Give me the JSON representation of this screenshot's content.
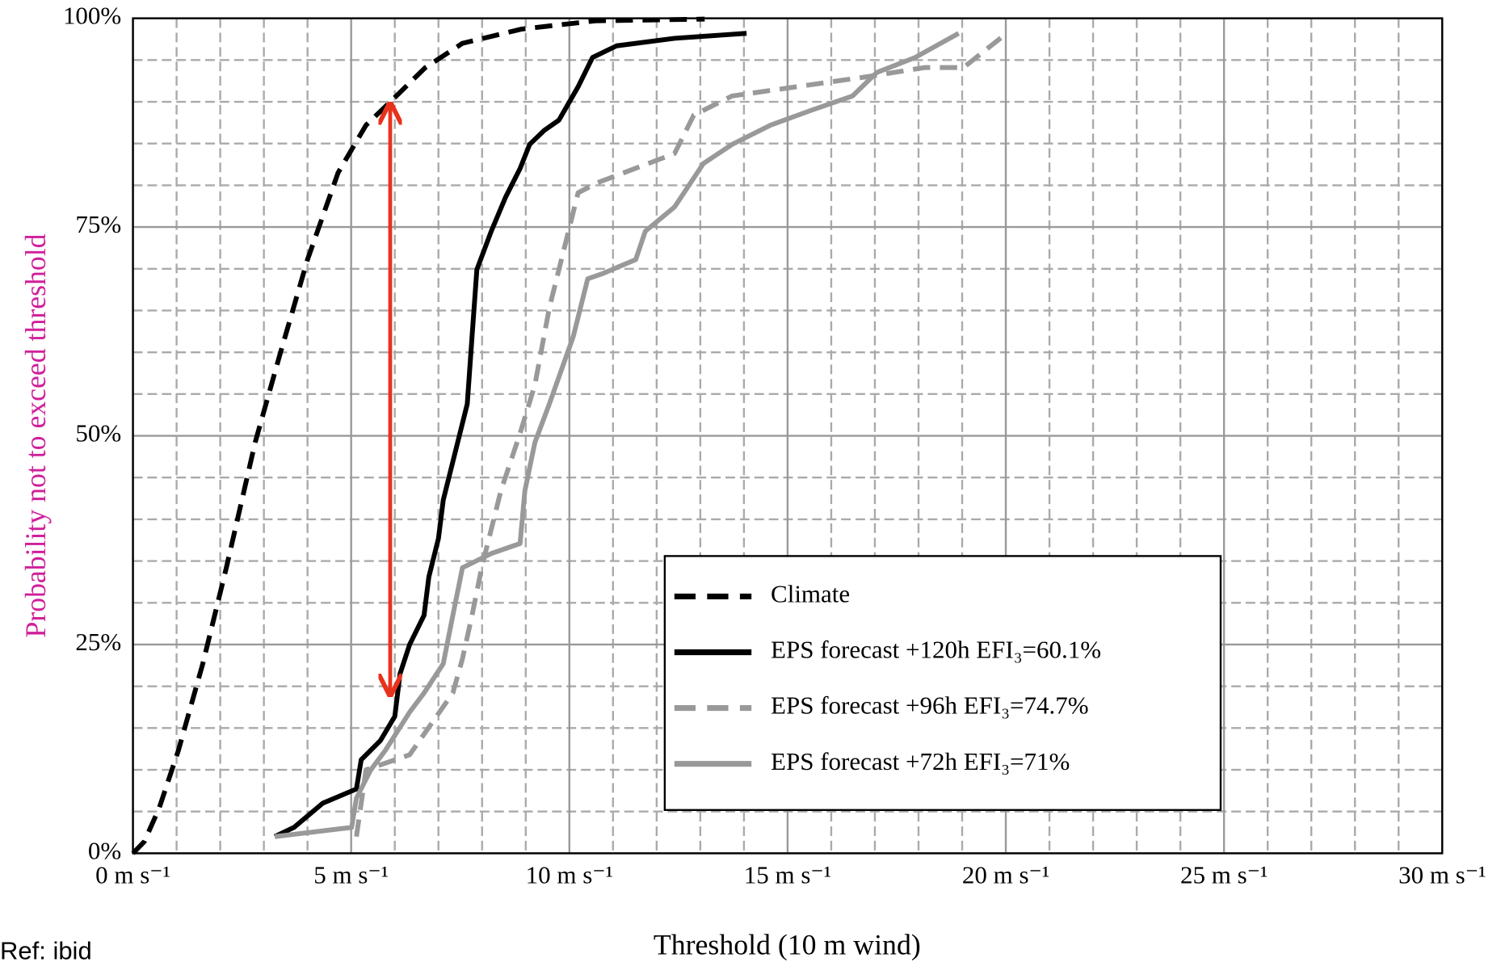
{
  "chart_data": {
    "type": "line",
    "x_label": "Threshold (10 m wind)",
    "y_label": "Probability not to exceed threshold",
    "y_label_color": "#d0209a",
    "note": "Ref: ibid",
    "xlim": [
      0,
      30
    ],
    "ylim": [
      0,
      100
    ],
    "xticks": [
      {
        "value": 0,
        "label": "0 m s⁻¹"
      },
      {
        "value": 5,
        "label": "5 m s⁻¹"
      },
      {
        "value": 10,
        "label": "10 m s⁻¹"
      },
      {
        "value": 15,
        "label": "15 m s⁻¹"
      },
      {
        "value": 20,
        "label": "20 m s⁻¹"
      },
      {
        "value": 25,
        "label": "25 m s⁻¹"
      },
      {
        "value": 30,
        "label": "30 m s⁻¹"
      }
    ],
    "yticks": [
      {
        "value": 0,
        "label": "0%"
      },
      {
        "value": 25,
        "label": "25%"
      },
      {
        "value": 50,
        "label": "50%"
      },
      {
        "value": 75,
        "label": "75%"
      },
      {
        "value": 100,
        "label": "100%"
      }
    ],
    "x_minor_ticks": [
      1,
      2,
      3,
      4,
      6,
      7,
      8,
      9,
      11,
      12,
      13,
      14,
      16,
      17,
      18,
      19,
      21,
      22,
      23,
      24,
      26,
      27,
      28,
      29
    ],
    "y_minor_ticks": [
      5,
      10,
      15,
      20,
      30,
      35,
      40,
      45,
      55,
      60,
      65,
      70,
      80,
      85,
      90,
      95
    ],
    "grid": true,
    "legend": "lower right",
    "series": [
      {
        "name": "Climate",
        "color": "#000000",
        "dashed": true,
        "x": [
          0,
          0.26,
          0.6,
          1.04,
          1.6,
          2.14,
          2.8,
          3.36,
          4.0,
          4.7,
          5.34,
          5.9,
          6.7,
          7.55,
          8.9,
          10.6,
          13.1
        ],
        "values": [
          0,
          1.4,
          5.4,
          12.3,
          22.7,
          34.2,
          49.2,
          59.6,
          71.1,
          81.5,
          87.2,
          90,
          94.1,
          97,
          98.7,
          99.7,
          99.9
        ]
      },
      {
        "name": "EPS forecast +120h EFI₃=60.1%",
        "color": "#000000",
        "dashed": false,
        "x": [
          3.25,
          3.69,
          4.35,
          5.12,
          5.23,
          5.67,
          6.0,
          6.12,
          6.34,
          6.67,
          6.78,
          7.0,
          7.11,
          7.33,
          7.44,
          7.66,
          7.77,
          7.88,
          8.21,
          8.54,
          8.87,
          9.09,
          9.43,
          9.76,
          10.2,
          10.53,
          11.08,
          12.41,
          14.06
        ],
        "values": [
          2.0,
          3.1,
          6.0,
          7.7,
          11.2,
          13.5,
          16.4,
          21.5,
          25.0,
          28.5,
          33.1,
          37.7,
          42.3,
          46.9,
          49.2,
          53.8,
          61.9,
          69.9,
          74.5,
          78.6,
          82.0,
          84.9,
          86.6,
          87.8,
          91.8,
          95.3,
          96.7,
          97.6,
          98.2
        ]
      },
      {
        "name": "EPS forecast +96h EFI₃=74.7%",
        "color": "#999999",
        "dashed": true,
        "x": [
          5.12,
          5.34,
          6.34,
          7.33,
          7.55,
          7.77,
          7.99,
          8.21,
          8.43,
          8.87,
          9.21,
          9.54,
          9.76,
          10.2,
          10.64,
          12.41,
          12.85,
          13.73,
          16.82,
          18.15,
          19.03,
          20.02
        ],
        "values": [
          2.0,
          10.0,
          11.8,
          19.2,
          23.3,
          28.5,
          34.2,
          38.8,
          43.4,
          50.3,
          56.1,
          65.3,
          69.9,
          79.1,
          80.3,
          83.8,
          88.4,
          90.7,
          93.0,
          94.1,
          94.1,
          98.2
        ]
      },
      {
        "name": "EPS forecast +72h EFI₃=71%",
        "color": "#999999",
        "dashed": false,
        "x": [
          3.25,
          5.01,
          5.12,
          5.45,
          5.78,
          6.34,
          6.67,
          7.11,
          7.33,
          7.55,
          8.21,
          8.87,
          8.98,
          9.21,
          9.54,
          10.09,
          10.42,
          10.75,
          11.52,
          11.74,
          12.41,
          13.07,
          13.73,
          14.61,
          15.5,
          16.49,
          17.04,
          17.92,
          18.92
        ],
        "values": [
          2.0,
          3.1,
          6.6,
          10.0,
          12.3,
          16.9,
          19.2,
          22.7,
          28.5,
          34.2,
          35.9,
          37.1,
          43.4,
          49.2,
          53.8,
          61.9,
          68.8,
          69.4,
          71.1,
          74.5,
          77.4,
          82.6,
          84.9,
          87.2,
          88.9,
          90.7,
          93.5,
          95.3,
          98.2
        ]
      }
    ]
  }
}
